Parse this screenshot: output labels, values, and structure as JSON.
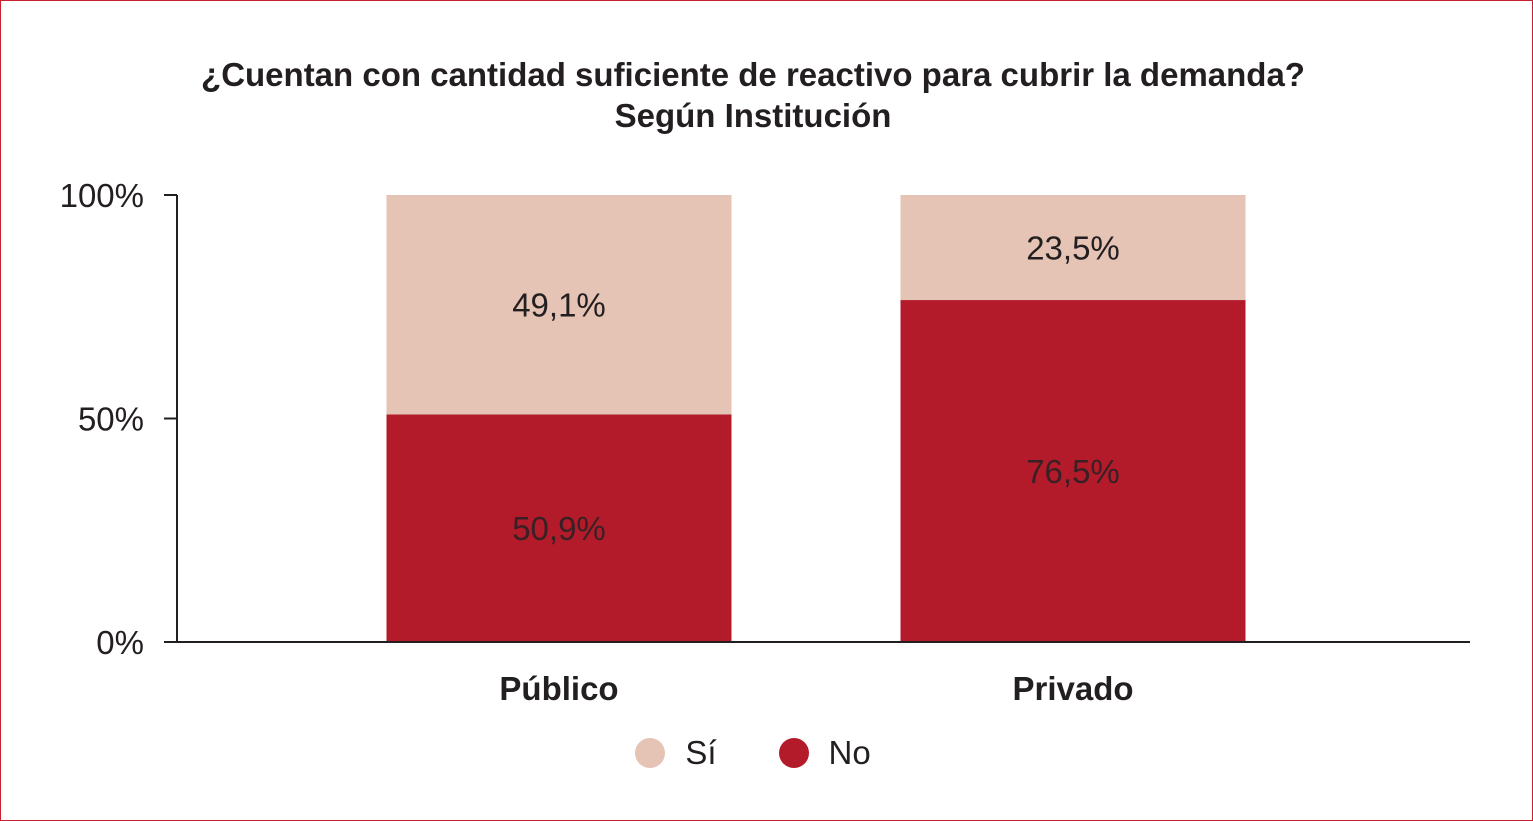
{
  "chart_data": {
    "type": "bar",
    "stacked": true,
    "title": "¿Cuentan con cantidad suficiente de reactivo para cubrir la demanda?",
    "subtitle": "Según Institución",
    "categories": [
      "Público",
      "Privado"
    ],
    "series": [
      {
        "name": "No",
        "values": [
          50.9,
          76.5
        ],
        "labels": [
          "50,9%",
          "76,5%"
        ],
        "color": "#b31b2a",
        "label_color": "#3a2024"
      },
      {
        "name": "Sí",
        "values": [
          49.1,
          23.5
        ],
        "labels": [
          "49,1%",
          "23,5%"
        ],
        "color": "#e5c3b5",
        "label_color": "#231f20"
      }
    ],
    "ylim": [
      0,
      100
    ],
    "yticks": [
      {
        "value": 0,
        "label": "0%"
      },
      {
        "value": 50,
        "label": "50%"
      },
      {
        "value": 100,
        "label": "100%"
      }
    ],
    "legend": {
      "position": "bottom-center",
      "order": [
        "Sí",
        "No"
      ]
    },
    "grid": false
  }
}
